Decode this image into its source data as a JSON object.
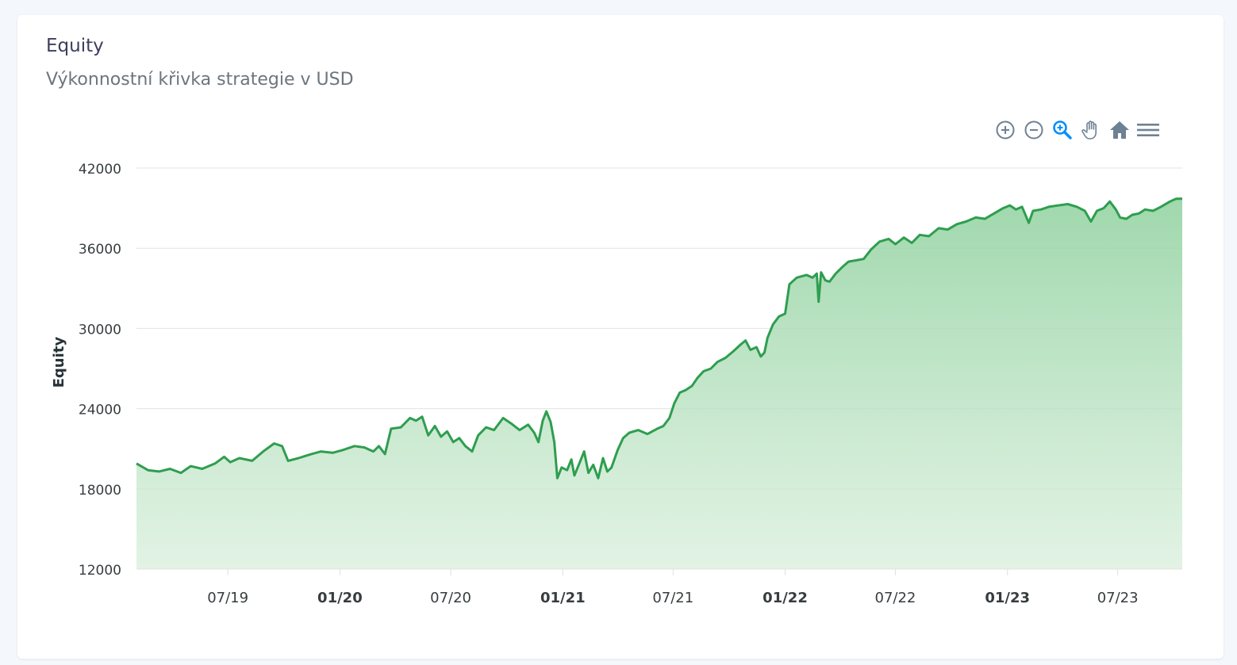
{
  "card": {
    "title": "Equity",
    "subtitle": "Výkonnostní křivka strategie v USD"
  },
  "toolbar": {
    "items": [
      {
        "icon": "zoom-in-icon"
      },
      {
        "icon": "zoom-out-icon"
      },
      {
        "icon": "selection-zoom-icon",
        "active_color": "#008ffb"
      },
      {
        "icon": "pan-hand-icon"
      },
      {
        "icon": "home-reset-icon"
      },
      {
        "icon": "menu-icon"
      }
    ]
  },
  "chart_data": {
    "type": "area",
    "ylabel": "Equity",
    "ylim": [
      12000,
      42000
    ],
    "yticks": [
      "42000",
      "36000",
      "30000",
      "24000",
      "18000",
      "12000"
    ],
    "x_range": [
      "2019-02-01",
      "2023-10-15"
    ],
    "xticks": [
      {
        "label": "07/19",
        "date": "2019-07-01",
        "bold": false
      },
      {
        "label": "01/20",
        "date": "2020-01-01",
        "bold": true
      },
      {
        "label": "07/20",
        "date": "2020-07-01",
        "bold": false
      },
      {
        "label": "01/21",
        "date": "2021-01-01",
        "bold": true
      },
      {
        "label": "07/21",
        "date": "2021-07-01",
        "bold": false
      },
      {
        "label": "01/22",
        "date": "2022-01-01",
        "bold": true
      },
      {
        "label": "07/22",
        "date": "2022-07-01",
        "bold": false
      },
      {
        "label": "01/23",
        "date": "2023-01-01",
        "bold": true
      },
      {
        "label": "07/23",
        "date": "2023-07-01",
        "bold": false
      }
    ],
    "grid": true,
    "line_color": "#2e9e4f",
    "series": [
      {
        "values": [
          [
            "2019-02-01",
            19900
          ],
          [
            "2019-02-20",
            19400
          ],
          [
            "2019-03-10",
            19300
          ],
          [
            "2019-03-28",
            19500
          ],
          [
            "2019-04-15",
            19200
          ],
          [
            "2019-05-01",
            19700
          ],
          [
            "2019-05-20",
            19500
          ],
          [
            "2019-06-10",
            19900
          ],
          [
            "2019-06-25",
            20400
          ],
          [
            "2019-07-05",
            20000
          ],
          [
            "2019-07-20",
            20300
          ],
          [
            "2019-08-10",
            20100
          ],
          [
            "2019-08-28",
            20800
          ],
          [
            "2019-09-15",
            21400
          ],
          [
            "2019-09-28",
            21200
          ],
          [
            "2019-10-08",
            20100
          ],
          [
            "2019-10-25",
            20300
          ],
          [
            "2019-11-15",
            20600
          ],
          [
            "2019-12-01",
            20800
          ],
          [
            "2019-12-20",
            20700
          ],
          [
            "2020-01-05",
            20900
          ],
          [
            "2020-01-25",
            21200
          ],
          [
            "2020-02-10",
            21100
          ],
          [
            "2020-02-25",
            20800
          ],
          [
            "2020-03-05",
            21200
          ],
          [
            "2020-03-15",
            20600
          ],
          [
            "2020-03-25",
            22500
          ],
          [
            "2020-04-10",
            22600
          ],
          [
            "2020-04-25",
            23300
          ],
          [
            "2020-05-05",
            23100
          ],
          [
            "2020-05-15",
            23400
          ],
          [
            "2020-05-25",
            22000
          ],
          [
            "2020-06-05",
            22700
          ],
          [
            "2020-06-15",
            21900
          ],
          [
            "2020-06-25",
            22300
          ],
          [
            "2020-07-05",
            21500
          ],
          [
            "2020-07-15",
            21800
          ],
          [
            "2020-07-25",
            21200
          ],
          [
            "2020-08-05",
            20800
          ],
          [
            "2020-08-15",
            22000
          ],
          [
            "2020-08-28",
            22600
          ],
          [
            "2020-09-10",
            22400
          ],
          [
            "2020-09-25",
            23300
          ],
          [
            "2020-10-08",
            22900
          ],
          [
            "2020-10-22",
            22400
          ],
          [
            "2020-11-05",
            22800
          ],
          [
            "2020-11-15",
            22200
          ],
          [
            "2020-11-22",
            21500
          ],
          [
            "2020-11-29",
            23100
          ],
          [
            "2020-12-05",
            23800
          ],
          [
            "2020-12-12",
            23000
          ],
          [
            "2020-12-18",
            21500
          ],
          [
            "2020-12-23",
            18800
          ],
          [
            "2020-12-30",
            19600
          ],
          [
            "2021-01-08",
            19400
          ],
          [
            "2021-01-15",
            20200
          ],
          [
            "2021-01-20",
            19000
          ],
          [
            "2021-01-28",
            19900
          ],
          [
            "2021-02-05",
            20800
          ],
          [
            "2021-02-12",
            19200
          ],
          [
            "2021-02-20",
            19800
          ],
          [
            "2021-02-28",
            18800
          ],
          [
            "2021-03-08",
            20300
          ],
          [
            "2021-03-15",
            19300
          ],
          [
            "2021-03-22",
            19600
          ],
          [
            "2021-04-01",
            20900
          ],
          [
            "2021-04-10",
            21800
          ],
          [
            "2021-04-20",
            22200
          ],
          [
            "2021-05-05",
            22400
          ],
          [
            "2021-05-20",
            22100
          ],
          [
            "2021-06-05",
            22500
          ],
          [
            "2021-06-15",
            22700
          ],
          [
            "2021-06-25",
            23300
          ],
          [
            "2021-07-03",
            24400
          ],
          [
            "2021-07-12",
            25200
          ],
          [
            "2021-07-22",
            25400
          ],
          [
            "2021-08-01",
            25700
          ],
          [
            "2021-08-10",
            26300
          ],
          [
            "2021-08-20",
            26800
          ],
          [
            "2021-09-01",
            27000
          ],
          [
            "2021-09-12",
            27500
          ],
          [
            "2021-09-25",
            27800
          ],
          [
            "2021-10-08",
            28300
          ],
          [
            "2021-10-20",
            28800
          ],
          [
            "2021-10-28",
            29100
          ],
          [
            "2021-11-05",
            28400
          ],
          [
            "2021-11-15",
            28600
          ],
          [
            "2021-11-22",
            27900
          ],
          [
            "2021-11-28",
            28200
          ],
          [
            "2021-12-03",
            29300
          ],
          [
            "2021-12-12",
            30300
          ],
          [
            "2021-12-22",
            30900
          ],
          [
            "2022-01-01",
            31100
          ],
          [
            "2022-01-08",
            33300
          ],
          [
            "2022-01-20",
            33800
          ],
          [
            "2022-02-05",
            34000
          ],
          [
            "2022-02-15",
            33800
          ],
          [
            "2022-02-22",
            34100
          ],
          [
            "2022-02-25",
            32000
          ],
          [
            "2022-03-01",
            34200
          ],
          [
            "2022-03-08",
            33600
          ],
          [
            "2022-03-15",
            33500
          ],
          [
            "2022-03-25",
            34100
          ],
          [
            "2022-04-05",
            34600
          ],
          [
            "2022-04-15",
            35000
          ],
          [
            "2022-04-28",
            35100
          ],
          [
            "2022-05-10",
            35200
          ],
          [
            "2022-05-22",
            35900
          ],
          [
            "2022-06-05",
            36500
          ],
          [
            "2022-06-20",
            36700
          ],
          [
            "2022-07-01",
            36300
          ],
          [
            "2022-07-15",
            36800
          ],
          [
            "2022-07-28",
            36400
          ],
          [
            "2022-08-10",
            37000
          ],
          [
            "2022-08-25",
            36900
          ],
          [
            "2022-09-10",
            37500
          ],
          [
            "2022-09-25",
            37400
          ],
          [
            "2022-10-10",
            37800
          ],
          [
            "2022-10-25",
            38000
          ],
          [
            "2022-11-10",
            38300
          ],
          [
            "2022-11-25",
            38200
          ],
          [
            "2022-12-10",
            38600
          ],
          [
            "2022-12-25",
            39000
          ],
          [
            "2023-01-05",
            39200
          ],
          [
            "2023-01-15",
            38900
          ],
          [
            "2023-01-25",
            39100
          ],
          [
            "2023-02-05",
            37900
          ],
          [
            "2023-02-12",
            38800
          ],
          [
            "2023-02-25",
            38900
          ],
          [
            "2023-03-10",
            39100
          ],
          [
            "2023-03-25",
            39200
          ],
          [
            "2023-04-10",
            39300
          ],
          [
            "2023-04-25",
            39100
          ],
          [
            "2023-05-08",
            38800
          ],
          [
            "2023-05-18",
            38000
          ],
          [
            "2023-05-28",
            38800
          ],
          [
            "2023-06-08",
            39000
          ],
          [
            "2023-06-18",
            39500
          ],
          [
            "2023-06-28",
            38900
          ],
          [
            "2023-07-05",
            38300
          ],
          [
            "2023-07-15",
            38200
          ],
          [
            "2023-07-25",
            38500
          ],
          [
            "2023-08-05",
            38600
          ],
          [
            "2023-08-15",
            38900
          ],
          [
            "2023-08-28",
            38800
          ],
          [
            "2023-09-10",
            39100
          ],
          [
            "2023-09-25",
            39500
          ],
          [
            "2023-10-05",
            39700
          ],
          [
            "2023-10-15",
            39700
          ]
        ]
      }
    ]
  }
}
